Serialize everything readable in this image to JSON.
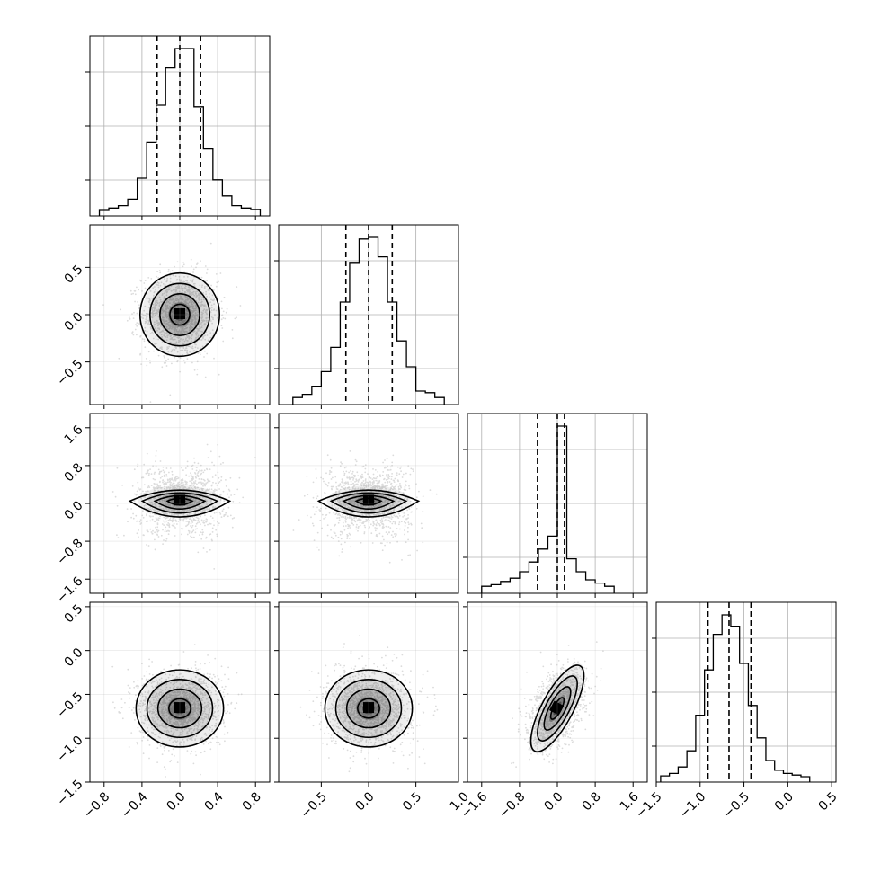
{
  "chart_data": {
    "type": "corner",
    "title": "",
    "grid": true,
    "parameters": [
      {
        "range": [
          -0.95,
          0.95
        ],
        "ticks": [
          -0.8,
          -0.4,
          0.0,
          0.4,
          0.8
        ],
        "tick_labels": [
          "−0.8",
          "−0.4",
          "0.0",
          "0.4",
          "0.8"
        ],
        "hist": {
          "type": "step",
          "bins": [
            -0.85,
            -0.75,
            -0.65,
            -0.55,
            -0.45,
            -0.35,
            -0.25,
            -0.15,
            -0.05,
            0.05,
            0.15,
            0.25,
            0.35,
            0.45,
            0.55,
            0.65,
            0.75,
            0.85
          ],
          "counts": [
            0.0,
            0.015,
            0.03,
            0.07,
            0.2,
            0.42,
            0.65,
            0.88,
            1.0,
            1.0,
            0.64,
            0.38,
            0.19,
            0.09,
            0.03,
            0.015,
            0.005
          ],
          "quantiles": [
            -0.24,
            0.0,
            0.22
          ]
        }
      },
      {
        "range": [
          -0.95,
          0.95
        ],
        "ticks": [
          -0.5,
          0.0,
          0.5,
          1.0
        ],
        "tick_labels": [
          "−0.5",
          "0.0",
          "0.5",
          "1.0"
        ],
        "hist": {
          "type": "step",
          "bins": [
            -0.8,
            -0.7,
            -0.6,
            -0.5,
            -0.4,
            -0.3,
            -0.2,
            -0.1,
            0.0,
            0.1,
            0.2,
            0.3,
            0.4,
            0.5,
            0.6,
            0.7,
            0.8
          ],
          "counts": [
            0.01,
            0.03,
            0.08,
            0.17,
            0.32,
            0.6,
            0.84,
            0.99,
            1.0,
            0.88,
            0.6,
            0.36,
            0.2,
            0.05,
            0.04,
            0.01
          ],
          "quantiles": [
            -0.24,
            0.0,
            0.25
          ]
        }
      },
      {
        "range": [
          -1.9,
          1.9
        ],
        "ticks": [
          -1.6,
          -0.8,
          0.0,
          0.8,
          1.6
        ],
        "tick_labels": [
          "−1.6",
          "−0.8",
          "0.0",
          "0.8",
          "1.6"
        ],
        "hist": {
          "type": "step",
          "bins": [
            -1.6,
            -1.4,
            -1.2,
            -1.0,
            -0.8,
            -0.6,
            -0.4,
            -0.2,
            0.0,
            0.2,
            0.4,
            0.6,
            0.8,
            1.0,
            1.2
          ],
          "counts": [
            0.01,
            0.02,
            0.04,
            0.06,
            0.1,
            0.16,
            0.24,
            0.32,
            1.0,
            0.18,
            0.1,
            0.05,
            0.03,
            0.01
          ],
          "quantiles": [
            -0.42,
            0.0,
            0.15
          ]
        }
      },
      {
        "range": [
          -1.5,
          0.55
        ],
        "ticks": [
          -1.5,
          -1.0,
          -0.5,
          0.0,
          0.5
        ],
        "tick_labels": [
          "−1.5",
          "−1.0",
          "−0.5",
          "0.0",
          "0.5"
        ],
        "hist": {
          "type": "step",
          "bins": [
            -1.45,
            -1.35,
            -1.25,
            -1.15,
            -1.05,
            -0.95,
            -0.85,
            -0.75,
            -0.65,
            -0.55,
            -0.45,
            -0.35,
            -0.25,
            -0.15,
            -0.05,
            0.05,
            0.15,
            0.25
          ],
          "counts": [
            0.005,
            0.02,
            0.06,
            0.16,
            0.38,
            0.66,
            0.88,
            1.0,
            0.93,
            0.7,
            0.44,
            0.24,
            0.1,
            0.04,
            0.02,
            0.01,
            0.0
          ],
          "quantiles": [
            -0.91,
            -0.67,
            -0.42
          ]
        }
      }
    ],
    "pair_panels": [
      {
        "x_param": 0,
        "y_param": 1,
        "mean": [
          0.0,
          0.0
        ],
        "sigma": [
          0.2,
          0.22
        ],
        "rho": 0.0,
        "contour_shape": "ellipse"
      },
      {
        "x_param": 0,
        "y_param": 2,
        "mean": [
          0.0,
          0.05
        ],
        "sigma": [
          0.22,
          0.3
        ],
        "rho": 0.0,
        "contour_shape": "lens"
      },
      {
        "x_param": 1,
        "y_param": 2,
        "mean": [
          0.0,
          0.05
        ],
        "sigma": [
          0.22,
          0.3
        ],
        "rho": 0.0,
        "contour_shape": "lens"
      },
      {
        "x_param": 0,
        "y_param": 3,
        "mean": [
          0.0,
          -0.66
        ],
        "sigma": [
          0.22,
          0.22
        ],
        "rho": 0.0,
        "contour_shape": "ellipse"
      },
      {
        "x_param": 1,
        "y_param": 3,
        "mean": [
          0.0,
          -0.66
        ],
        "sigma": [
          0.22,
          0.22
        ],
        "rho": 0.0,
        "contour_shape": "ellipse"
      },
      {
        "x_param": 2,
        "y_param": 3,
        "mean": [
          0.0,
          -0.66
        ],
        "sigma": [
          0.3,
          0.22
        ],
        "rho": 0.45,
        "contour_shape": "tilted"
      }
    ],
    "contour_levels_sigma": [
      0.5,
      1.0,
      1.5,
      2.0
    ]
  },
  "colors": {
    "line": "#000000",
    "grid": "#b0b0b0",
    "background": "#ffffff",
    "points": "#9a9a9a"
  }
}
